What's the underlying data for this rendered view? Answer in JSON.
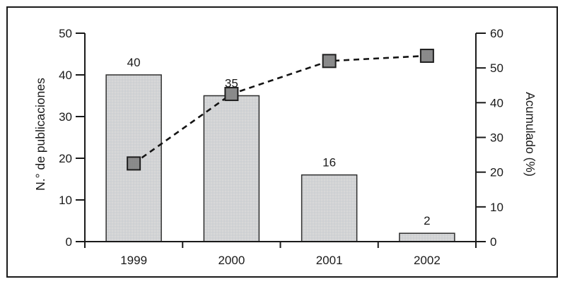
{
  "chart_data": {
    "type": "bar",
    "subtype": "pareto-combo",
    "title": "",
    "categories": [
      "1999",
      "2000",
      "2001",
      "2002"
    ],
    "series": [
      {
        "name": "N.° de publicaciones",
        "type": "bar",
        "axis": "left",
        "values": [
          40,
          35,
          16,
          2
        ],
        "data_labels": [
          "40",
          "35",
          "16",
          "2"
        ]
      },
      {
        "name": "Acumulado (%)",
        "type": "line",
        "line_style": "dashed",
        "marker": "square",
        "axis": "right",
        "values": [
          22.5,
          42.5,
          52,
          53.5
        ]
      }
    ],
    "left_axis": {
      "title": "N.° de publicaciones",
      "min": 0,
      "max": 50,
      "ticks": [
        0,
        10,
        20,
        30,
        40,
        50
      ]
    },
    "right_axis": {
      "title": "Acumulado (%)",
      "min": 0,
      "max": 60,
      "ticks": [
        0,
        10,
        20,
        30,
        40,
        50,
        60
      ]
    },
    "x_axis": {
      "labels": [
        "1999",
        "2000",
        "2001",
        "2002"
      ]
    },
    "grid": false,
    "legend_position": "none"
  },
  "colors": {
    "background": "#ffffff",
    "frame_border": "#1a1a1a",
    "axis_line": "#1a1a1a",
    "bar_fill": "#d3d3d3",
    "bar_fill_dot": "#c2cbd6",
    "bar_border": "#2e2e2e",
    "line": "#141414",
    "marker_fill": "#8b8b8b",
    "marker_border": "#1f1f1f",
    "text": "#1a1a1a"
  }
}
